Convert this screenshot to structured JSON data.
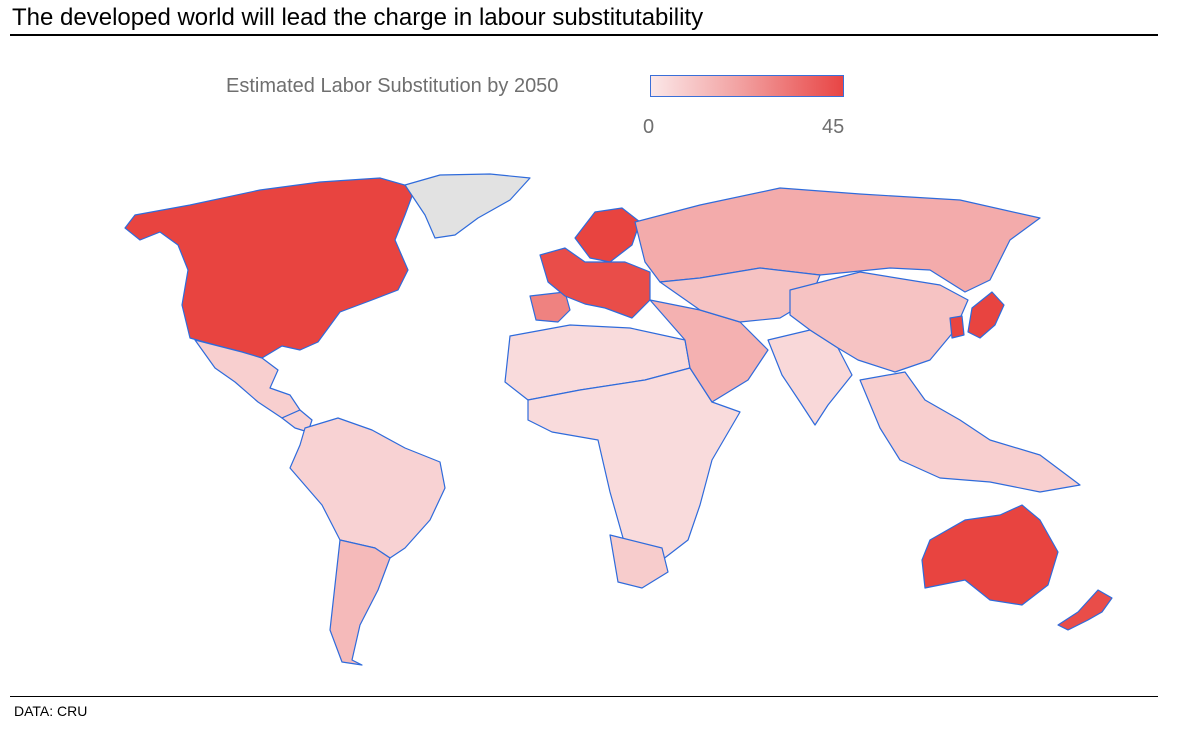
{
  "header": {
    "title": "The developed world will lead the charge in labour substitutability"
  },
  "legend": {
    "title": "Estimated Labor Substitution by 2050",
    "min_label": "0",
    "max_label": "45",
    "min_value": 0,
    "max_value": 45
  },
  "colors": {
    "low": "#fbe7e8",
    "mid": "#f2a3a3",
    "high": "#e8403b",
    "no_data": "#e2e2e2",
    "border": "#2f6bdb"
  },
  "regions": [
    {
      "name": "North America",
      "value": 44
    },
    {
      "name": "Greenland",
      "value": null
    },
    {
      "name": "Mexico",
      "value": 8
    },
    {
      "name": "Central America",
      "value": 7
    },
    {
      "name": "South America",
      "value": 7
    },
    {
      "name": "Argentina",
      "value": 15
    },
    {
      "name": "Western Europe",
      "value": 42
    },
    {
      "name": "Iberia",
      "value": 30
    },
    {
      "name": "Scandinavia",
      "value": 44
    },
    {
      "name": "Russia",
      "value": 20
    },
    {
      "name": "North Africa",
      "value": 4
    },
    {
      "name": "Sub-Saharan Africa",
      "value": 4
    },
    {
      "name": "Southern Africa",
      "value": 9
    },
    {
      "name": "Middle East",
      "value": 18
    },
    {
      "name": "Central Asia",
      "value": 12
    },
    {
      "name": "India",
      "value": 5
    },
    {
      "name": "China",
      "value": 12
    },
    {
      "name": "Southeast Asia",
      "value": 8
    },
    {
      "name": "Japan",
      "value": 44
    },
    {
      "name": "South Korea",
      "value": 44
    },
    {
      "name": "Australia",
      "value": 44
    },
    {
      "name": "New Zealand",
      "value": 42
    }
  ],
  "footer": {
    "source": "DATA: CRU"
  }
}
